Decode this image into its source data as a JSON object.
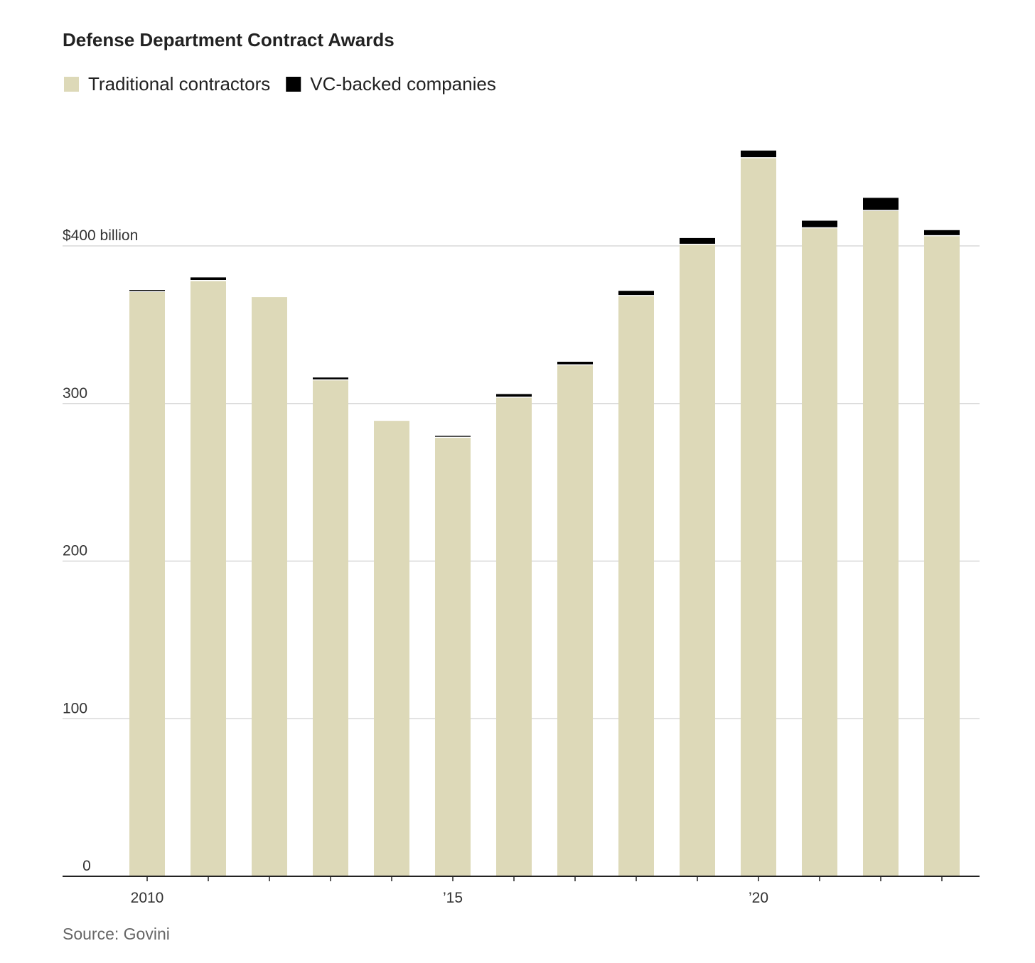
{
  "chart_data": {
    "type": "stacked-bar",
    "title": "Defense Department Contract Awards",
    "categories": [
      "2010",
      null,
      null,
      null,
      null,
      "’15",
      null,
      null,
      null,
      null,
      "’20",
      null,
      null,
      null
    ],
    "series": [
      {
        "name": "Traditional contractors",
        "color": "#ddd9b8",
        "values": [
          371,
          378,
          367.5,
          315,
          289,
          278.5,
          304,
          324.5,
          368.5,
          401,
          456,
          411.5,
          422.5,
          406.5
        ]
      },
      {
        "name": "VC-backed companies",
        "color": "#000000",
        "values": [
          1,
          2,
          0,
          1.5,
          0,
          1,
          2,
          2,
          3,
          4,
          4.5,
          4.5,
          8,
          3.5
        ]
      }
    ],
    "ylim": [
      0,
      480
    ],
    "yticks": [
      0,
      100,
      200,
      300,
      {
        "value": 400,
        "label": "$400 billion"
      }
    ],
    "grid": true,
    "source": "Source: Govini"
  }
}
